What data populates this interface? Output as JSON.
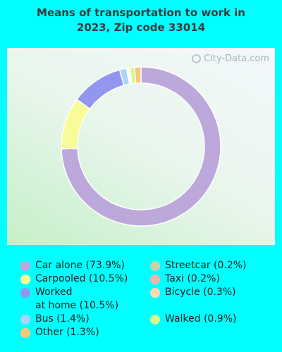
{
  "chart_data": {
    "type": "pie",
    "title_line1": "Means of transportation to work in",
    "title_line2": "2023, Zip code 33014",
    "watermark": "City-Data.com",
    "slices": [
      {
        "label": "Car alone (73.9%)",
        "value": 73.9,
        "color": "#bca8da"
      },
      {
        "label": "Carpooled (10.5%)",
        "value": 10.5,
        "color": "#f8fc98"
      },
      {
        "label": "Worked",
        "label2": "at home (10.5%)",
        "value": 10.5,
        "color": "#9396ee"
      },
      {
        "label": "Bus (1.4%)",
        "value": 1.4,
        "color": "#a9d4fc"
      },
      {
        "label": "Streetcar (0.2%)",
        "value": 0.2,
        "color": "#c5d4a8"
      },
      {
        "label": "Taxi (0.2%)",
        "value": 0.2,
        "color": "#f1b4ae"
      },
      {
        "label": "Bicycle (0.3%)",
        "value": 0.3,
        "color": "#fbd8b0"
      },
      {
        "label": "Walked (0.9%)",
        "value": 0.9,
        "color": "#d2f890"
      },
      {
        "label": "Other (1.3%)",
        "value": 1.3,
        "color": "#fcc878"
      }
    ],
    "legend_placement": "bottom"
  }
}
